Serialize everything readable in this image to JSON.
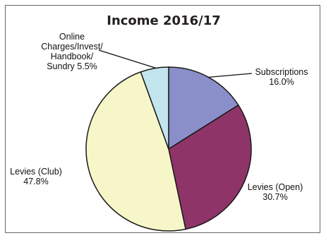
{
  "chart_data": {
    "type": "pie",
    "title": "Income 2016/17",
    "start_angle_deg": 0,
    "direction": "clockwise",
    "slices": [
      {
        "label_lines": [
          "Subscriptions",
          "16.0%"
        ],
        "value": 16.0,
        "color": "#8b8fc9"
      },
      {
        "label_lines": [
          "Levies  (Open)",
          "30.7%"
        ],
        "value": 30.7,
        "color": "#8f3468"
      },
      {
        "label_lines": [
          "Levies  (Club)",
          "47.8%"
        ],
        "value": 47.8,
        "color": "#f7f6c8"
      },
      {
        "label_lines": [
          "Online",
          "Charges/Invest/",
          "Handbook/",
          "Sundry 5.5%"
        ],
        "value": 5.5,
        "color": "#c3e5ed"
      }
    ]
  }
}
